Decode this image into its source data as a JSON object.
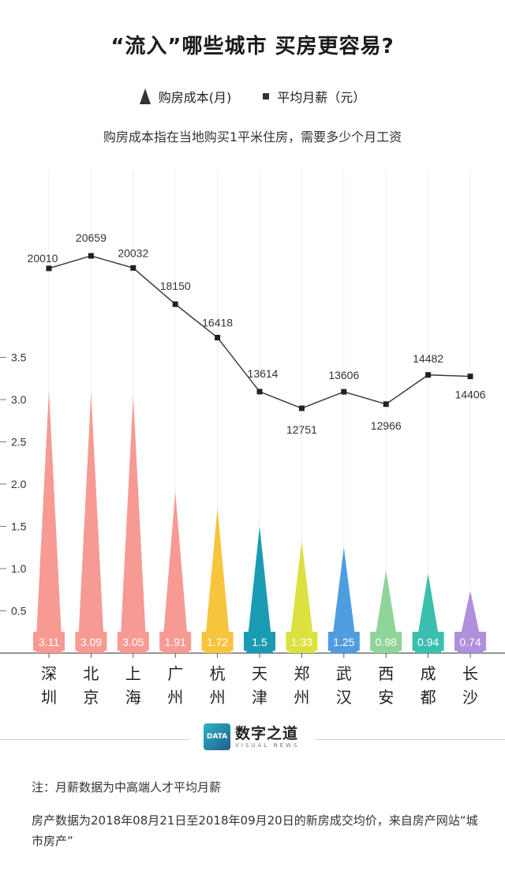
{
  "title": "“流入”哪些城市 买房更容易?",
  "subtitle": "购房成本指在当地购买1平米住房，需要多少个月工资",
  "legend": {
    "cost_label": "购房成本(月)",
    "salary_label": "平均月薪（元）"
  },
  "notes": {
    "line1": "注：月薪数据为中高端人才平均月薪",
    "line2": "房产数据为2018年08月21日至2018年09月20日的新房成交均价，来自房产网站“城市房产”"
  },
  "brand": {
    "logo_text": "DATA",
    "name": "数字之道",
    "sub": "VISUAL NEWS"
  },
  "chart_data": {
    "type": "bar",
    "categories": [
      "深圳",
      "北京",
      "上海",
      "广州",
      "杭州",
      "天津",
      "郑州",
      "武汉",
      "西安",
      "成都",
      "长沙"
    ],
    "ylim": [
      0,
      3.5
    ],
    "yticks": [
      "0.5",
      "1.0",
      "1.5",
      "2.0",
      "2.5",
      "3.0",
      "3.5"
    ],
    "series": [
      {
        "name": "购房成本(月)",
        "type": "triangle-bar",
        "values": [
          3.11,
          3.09,
          3.05,
          1.91,
          1.72,
          1.5,
          1.33,
          1.25,
          0.98,
          0.94,
          0.74
        ],
        "labels": [
          "3.11",
          "3.09",
          "3.05",
          "1.91",
          "1.72",
          "1.5",
          "1.33",
          "1.25",
          "0.98",
          "0.94",
          "0.74"
        ],
        "colors": [
          "#f79a94",
          "#f79a94",
          "#f79a94",
          "#f79a94",
          "#f7c43d",
          "#1a9bb3",
          "#dbe23f",
          "#4f9de0",
          "#90d49a",
          "#3bbfae",
          "#b08fdc"
        ]
      },
      {
        "name": "平均月薪（元）",
        "type": "line",
        "values": [
          20010,
          20659,
          20032,
          18150,
          16418,
          13614,
          12751,
          13606,
          12966,
          14482,
          14406
        ]
      }
    ]
  }
}
